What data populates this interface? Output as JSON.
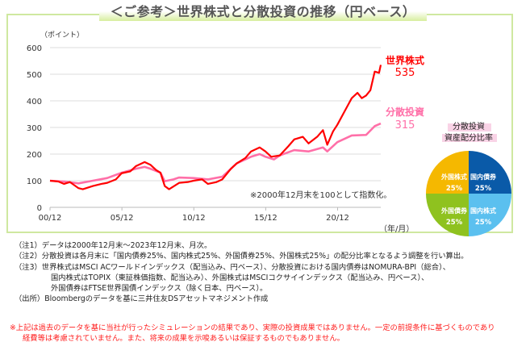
{
  "title": "＜ご参考＞世界株式と分散投資の推移（円ベース）",
  "chart_data": {
    "type": "line",
    "title": "世界株式と分散投資の推移（円ベース）",
    "ylabel": "（ポイント）",
    "xlabel": "（年/月）",
    "ylim": [
      0,
      600
    ],
    "yticks": [
      "0",
      "100",
      "200",
      "300",
      "400",
      "500",
      "600"
    ],
    "xticks": [
      {
        "label": "00/12",
        "x": 2000.92
      },
      {
        "label": "05/12",
        "x": 2005.92
      },
      {
        "label": "10/12",
        "x": 2010.92
      },
      {
        "label": "15/12",
        "x": 2015.92
      },
      {
        "label": "20/12",
        "x": 2020.92
      }
    ],
    "xlim": [
      2000.92,
      2023.92
    ],
    "grid": true,
    "annotation": "※2000年12月末を100として指数化。",
    "series": [
      {
        "name": "世界株式",
        "end_value": "535",
        "color": "#ff0000",
        "points": [
          [
            2000.92,
            100
          ],
          [
            2001.5,
            97
          ],
          [
            2001.9,
            88
          ],
          [
            2002.3,
            95
          ],
          [
            2002.9,
            72
          ],
          [
            2003.2,
            68
          ],
          [
            2003.9,
            80
          ],
          [
            2004.5,
            88
          ],
          [
            2004.9,
            92
          ],
          [
            2005.5,
            105
          ],
          [
            2005.9,
            128
          ],
          [
            2006.5,
            135
          ],
          [
            2006.9,
            155
          ],
          [
            2007.5,
            170
          ],
          [
            2007.9,
            160
          ],
          [
            2008.3,
            140
          ],
          [
            2008.6,
            130
          ],
          [
            2008.9,
            80
          ],
          [
            2009.2,
            68
          ],
          [
            2009.9,
            92
          ],
          [
            2010.5,
            95
          ],
          [
            2010.9,
            100
          ],
          [
            2011.5,
            105
          ],
          [
            2011.9,
            88
          ],
          [
            2012.5,
            95
          ],
          [
            2012.9,
            105
          ],
          [
            2013.5,
            145
          ],
          [
            2013.9,
            165
          ],
          [
            2014.5,
            185
          ],
          [
            2014.9,
            210
          ],
          [
            2015.5,
            225
          ],
          [
            2015.9,
            210
          ],
          [
            2016.3,
            190
          ],
          [
            2016.9,
            195
          ],
          [
            2017.5,
            230
          ],
          [
            2017.9,
            255
          ],
          [
            2018.5,
            265
          ],
          [
            2018.9,
            240
          ],
          [
            2019.5,
            265
          ],
          [
            2019.9,
            290
          ],
          [
            2020.2,
            235
          ],
          [
            2020.6,
            285
          ],
          [
            2020.9,
            310
          ],
          [
            2021.5,
            370
          ],
          [
            2021.9,
            410
          ],
          [
            2022.3,
            430
          ],
          [
            2022.6,
            410
          ],
          [
            2022.9,
            420
          ],
          [
            2023.2,
            440
          ],
          [
            2023.5,
            510
          ],
          [
            2023.8,
            505
          ],
          [
            2023.92,
            535
          ]
        ]
      },
      {
        "name": "分散投資",
        "end_value": "315",
        "color": "#ff6fa8",
        "points": [
          [
            2000.92,
            100
          ],
          [
            2001.9,
            97
          ],
          [
            2002.9,
            90
          ],
          [
            2003.9,
            100
          ],
          [
            2004.9,
            110
          ],
          [
            2005.9,
            130
          ],
          [
            2006.9,
            145
          ],
          [
            2007.5,
            152
          ],
          [
            2007.9,
            145
          ],
          [
            2008.6,
            130
          ],
          [
            2008.9,
            98
          ],
          [
            2009.5,
            105
          ],
          [
            2009.9,
            112
          ],
          [
            2010.9,
            110
          ],
          [
            2011.9,
            105
          ],
          [
            2012.9,
            115
          ],
          [
            2013.5,
            145
          ],
          [
            2013.9,
            165
          ],
          [
            2014.9,
            190
          ],
          [
            2015.5,
            200
          ],
          [
            2015.9,
            190
          ],
          [
            2016.5,
            180
          ],
          [
            2016.9,
            195
          ],
          [
            2017.9,
            215
          ],
          [
            2018.9,
            210
          ],
          [
            2019.9,
            225
          ],
          [
            2020.2,
            210
          ],
          [
            2020.9,
            245
          ],
          [
            2021.9,
            270
          ],
          [
            2022.9,
            272
          ],
          [
            2023.5,
            305
          ],
          [
            2023.92,
            315
          ]
        ]
      }
    ],
    "pie": {
      "title_line1": "分散投資",
      "title_line2": "資産配分比率",
      "slices": [
        {
          "label": "国内債券",
          "value": "25%",
          "pct": 25,
          "color": "#0a5aa8"
        },
        {
          "label": "国内株式",
          "value": "25%",
          "pct": 25,
          "color": "#5bc0ef"
        },
        {
          "label": "外国債券",
          "value": "25%",
          "pct": 25,
          "color": "#8fc21f"
        },
        {
          "label": "外国株式",
          "value": "25%",
          "pct": 25,
          "color": "#f5b800"
        }
      ]
    }
  },
  "notes": [
    "（注1）データは2000年12月末～2023年12月末、月次。",
    "（注2）分散投資は各月末に「国内債券25%、国内株式25%、外国債券25%、外国株式25%」の配分比率となるよう調整を行い算出。",
    "（注3）世界株式はMSCI ACワールドインデックス（配当込み、円ベース）、分散投資における国内債券はNOMURA-BPI（総合）、",
    "国内株式はTOPIX（東証株価指数、配当込み）、外国株式はMSCIコクサイインデックス（配当込み、円ベース）、",
    "外国債券はFTSE世界国債インデックス（除く日本、円ベース）。",
    "（出所）Bloombergのデータを基に三井住友DSアセットマネジメント作成"
  ],
  "disclaimer": [
    "※上記は過去のデータを基に当社が行ったシミュレーションの結果であり、実際の投資成果ではありません。一定の前提条件に基づくものであり",
    "経費等は考慮されていません。また、将来の成果を示唆あるいは保証するものでもありません。"
  ]
}
